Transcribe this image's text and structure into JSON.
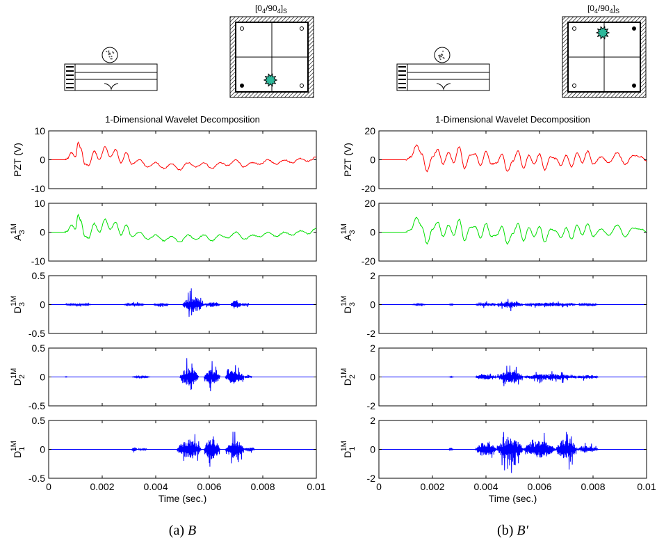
{
  "colors": {
    "pzt": "#ff0000",
    "approx": "#00e000",
    "detail": "#0000ff",
    "impact": "#2db89a",
    "axis": "#000000"
  },
  "icons": [
    "specimen-side-view-icon",
    "plate-top-view-icon",
    "impact-marker-icon"
  ],
  "chart_data": [
    {
      "type": "line",
      "id": "a",
      "caption_label": "(a)",
      "caption_var": "B",
      "title": "1-Dimensional Wavelet Decomposition",
      "plate_label": "[0",
      "plate_label_sub1": "4",
      "plate_label_mid": "/90",
      "plate_label_sub2": "4",
      "plate_label_end": "]",
      "plate_label_sub3": "S",
      "impact_location": "bottom-center",
      "xlabel": "Time (sec.)",
      "xlim": [
        0,
        0.01
      ],
      "xticks": [
        "0",
        "0.002",
        "0.004",
        "0.006",
        "0.008",
        "0.01"
      ],
      "panels": [
        {
          "name": "PZT (V)",
          "ylabel": "PZT (V)",
          "color_key": "pzt",
          "ylim": [
            -10,
            10
          ],
          "yticks": [
            "10",
            "0",
            "-10"
          ],
          "x": [
            0,
            0.0006,
            0.0007,
            0.00085,
            0.001,
            0.0011,
            0.0012,
            0.00135,
            0.0015,
            0.0017,
            0.0019,
            0.0021,
            0.0023,
            0.0025,
            0.0027,
            0.0029,
            0.0031,
            0.0034,
            0.0037,
            0.004,
            0.0043,
            0.0046,
            0.0049,
            0.0052,
            0.0055,
            0.0058,
            0.0061,
            0.0064,
            0.0067,
            0.007,
            0.0073,
            0.0076,
            0.0079,
            0.0082,
            0.0085,
            0.0088,
            0.0091,
            0.0094,
            0.0097,
            0.01
          ],
          "values": [
            0,
            0,
            0.4,
            2.5,
            1,
            6,
            4,
            -1.5,
            -2,
            3,
            0,
            4.5,
            1,
            3.5,
            -1,
            2.5,
            -1.5,
            0,
            -2.5,
            -1,
            -3,
            -1.5,
            -3.5,
            -1,
            -2.5,
            -1,
            -3,
            -1,
            -2,
            0,
            -2.5,
            -1,
            -1.5,
            0,
            -1.5,
            0,
            -1,
            0.5,
            -0.5,
            1
          ]
        },
        {
          "name": "A3 1M",
          "ylabel": "A",
          "ylabel_sub": "3",
          "ylabel_sup": "1M",
          "color_key": "approx",
          "ylim": [
            -10,
            10
          ],
          "yticks": [
            "10",
            "0",
            "-10"
          ],
          "x": [
            0,
            0.0006,
            0.0007,
            0.00085,
            0.001,
            0.0011,
            0.0012,
            0.00135,
            0.0015,
            0.0017,
            0.0019,
            0.0021,
            0.0023,
            0.0025,
            0.0027,
            0.0029,
            0.0031,
            0.0034,
            0.0037,
            0.004,
            0.0043,
            0.0046,
            0.0049,
            0.0052,
            0.0055,
            0.0058,
            0.0061,
            0.0064,
            0.0067,
            0.007,
            0.0073,
            0.0076,
            0.0079,
            0.0082,
            0.0085,
            0.0088,
            0.0091,
            0.0094,
            0.0097,
            0.01
          ],
          "values": [
            0,
            0,
            0.4,
            2.5,
            1,
            6,
            4,
            -1.5,
            -2,
            3,
            0,
            4.5,
            1,
            3.5,
            -1,
            2.5,
            -1.5,
            0,
            -2.5,
            -1,
            -3,
            -1.5,
            -3.5,
            -1,
            -2.5,
            -1,
            -3,
            -1,
            -2,
            0,
            -2.5,
            -1,
            -1.5,
            0,
            -1.5,
            0,
            -1,
            0.5,
            -0.5,
            1.5
          ]
        },
        {
          "name": "D3 1M",
          "ylabel": "D",
          "ylabel_sub": "3",
          "ylabel_sup": "1M",
          "color_key": "detail",
          "ylim": [
            -0.5,
            0.5
          ],
          "yticks": [
            "0.5",
            "0",
            "-0.5"
          ],
          "bursts": [
            {
              "x0": 0.0006,
              "x1": 0.0016,
              "amp": 0.04
            },
            {
              "x0": 0.0028,
              "x1": 0.0036,
              "amp": 0.05
            },
            {
              "x0": 0.0039,
              "x1": 0.0045,
              "amp": 0.06
            },
            {
              "x0": 0.005,
              "x1": 0.0058,
              "amp": 0.3
            },
            {
              "x0": 0.0058,
              "x1": 0.0064,
              "amp": 0.1
            },
            {
              "x0": 0.0068,
              "x1": 0.0072,
              "amp": 0.18
            },
            {
              "x0": 0.0072,
              "x1": 0.0075,
              "amp": 0.06
            }
          ]
        },
        {
          "name": "D2 1M",
          "ylabel": "D",
          "ylabel_sub": "2",
          "ylabel_sup": "1M",
          "color_key": "detail",
          "ylim": [
            -0.5,
            0.5
          ],
          "yticks": [
            "0.5",
            "0",
            "-0.5"
          ],
          "bursts": [
            {
              "x0": 0.0006,
              "x1": 0.0007,
              "amp": 0.02
            },
            {
              "x0": 0.0031,
              "x1": 0.0038,
              "amp": 0.03
            },
            {
              "x0": 0.0049,
              "x1": 0.0056,
              "amp": 0.35
            },
            {
              "x0": 0.0058,
              "x1": 0.0064,
              "amp": 0.3
            },
            {
              "x0": 0.0066,
              "x1": 0.0073,
              "amp": 0.28
            },
            {
              "x0": 0.0073,
              "x1": 0.0076,
              "amp": 0.05
            }
          ]
        },
        {
          "name": "D1 1M",
          "ylabel": "D",
          "ylabel_sub": "1",
          "ylabel_sup": "1M",
          "color_key": "detail",
          "ylim": [
            -0.5,
            0.5
          ],
          "yticks": [
            "0.5",
            "0",
            "-0.5"
          ],
          "bursts": [
            {
              "x0": 0.0031,
              "x1": 0.0033,
              "amp": 0.08
            },
            {
              "x0": 0.0033,
              "x1": 0.0037,
              "amp": 0.02
            },
            {
              "x0": 0.0048,
              "x1": 0.0057,
              "amp": 0.38
            },
            {
              "x0": 0.0058,
              "x1": 0.0064,
              "amp": 0.4
            },
            {
              "x0": 0.0066,
              "x1": 0.0073,
              "amp": 0.35
            },
            {
              "x0": 0.0073,
              "x1": 0.0077,
              "amp": 0.08
            }
          ]
        }
      ]
    },
    {
      "type": "line",
      "id": "b",
      "caption_label": "(b)",
      "caption_var": "B′",
      "title": "1-Dimensional Wavelet Decomposition",
      "plate_label": "[0",
      "plate_label_sub1": "4",
      "plate_label_mid": "/90",
      "plate_label_sub2": "4",
      "plate_label_end": "]",
      "plate_label_sub3": "S",
      "impact_location": "top-center",
      "xlabel": "Time (sec.)",
      "xlim": [
        0,
        0.01
      ],
      "xticks": [
        "0",
        "0.002",
        "0.004",
        "0.006",
        "0.008",
        "0.01"
      ],
      "panels": [
        {
          "name": "PZT (V)",
          "ylabel": "PZT (V)",
          "color_key": "pzt",
          "ylim": [
            -20,
            20
          ],
          "yticks": [
            "20",
            "0",
            "-20"
          ],
          "x": [
            0,
            0.001,
            0.0012,
            0.0014,
            0.0016,
            0.0018,
            0.002,
            0.0022,
            0.0024,
            0.0026,
            0.0028,
            0.003,
            0.0032,
            0.0034,
            0.0036,
            0.0038,
            0.004,
            0.0042,
            0.0044,
            0.0046,
            0.0048,
            0.005,
            0.0052,
            0.0054,
            0.0056,
            0.0058,
            0.006,
            0.0062,
            0.0064,
            0.0066,
            0.0068,
            0.007,
            0.0072,
            0.0074,
            0.0076,
            0.0078,
            0.008,
            0.0083,
            0.0086,
            0.0089,
            0.0092,
            0.0095,
            0.0098,
            0.01
          ],
          "values": [
            0,
            0,
            2,
            10,
            4,
            -8,
            2,
            7,
            -3,
            5,
            -2,
            9,
            -6,
            3,
            4,
            -4,
            6,
            -3,
            -2,
            4,
            -8,
            -1,
            6,
            -6,
            3,
            -3,
            4,
            -7,
            2,
            1,
            -4,
            3,
            -5,
            5,
            -2,
            6,
            -3,
            2,
            -2,
            5,
            -3,
            3,
            2,
            -1
          ]
        },
        {
          "name": "A3 1M",
          "ylabel": "A",
          "ylabel_sub": "3",
          "ylabel_sup": "1M",
          "color_key": "approx",
          "ylim": [
            -20,
            20
          ],
          "yticks": [
            "20",
            "0",
            "-20"
          ],
          "x": [
            0,
            0.001,
            0.0012,
            0.0014,
            0.0016,
            0.0018,
            0.002,
            0.0022,
            0.0024,
            0.0026,
            0.0028,
            0.003,
            0.0032,
            0.0034,
            0.0036,
            0.0038,
            0.004,
            0.0042,
            0.0044,
            0.0046,
            0.0048,
            0.005,
            0.0052,
            0.0054,
            0.0056,
            0.0058,
            0.006,
            0.0062,
            0.0064,
            0.0066,
            0.0068,
            0.007,
            0.0072,
            0.0074,
            0.0076,
            0.0078,
            0.008,
            0.0083,
            0.0086,
            0.0089,
            0.0092,
            0.0095,
            0.0098,
            0.01
          ],
          "values": [
            0,
            0,
            2,
            10,
            4,
            -8,
            2,
            7,
            -3,
            5,
            -2,
            9,
            -6,
            3,
            4,
            -4,
            6,
            -3,
            -2,
            4,
            -8,
            -1,
            6,
            -6,
            3,
            -3,
            4,
            -7,
            2,
            1,
            -4,
            3,
            -5,
            5,
            -2,
            6,
            -3,
            2,
            -2,
            5,
            -3,
            3,
            2,
            0
          ]
        },
        {
          "name": "D3 1M",
          "ylabel": "D",
          "ylabel_sub": "3",
          "ylabel_sup": "1M",
          "color_key": "detail",
          "ylim": [
            -2,
            2
          ],
          "yticks": [
            "2",
            "0",
            "-2"
          ],
          "bursts": [
            {
              "x0": 0.0012,
              "x1": 0.0018,
              "amp": 0.1
            },
            {
              "x0": 0.0026,
              "x1": 0.0028,
              "amp": 0.08
            },
            {
              "x0": 0.0036,
              "x1": 0.0044,
              "amp": 0.25
            },
            {
              "x0": 0.0044,
              "x1": 0.0054,
              "amp": 0.5
            },
            {
              "x0": 0.0054,
              "x1": 0.0074,
              "amp": 0.3
            },
            {
              "x0": 0.0074,
              "x1": 0.0082,
              "amp": 0.15
            }
          ]
        },
        {
          "name": "D2 1M",
          "ylabel": "D",
          "ylabel_sub": "2",
          "ylabel_sup": "1M",
          "color_key": "detail",
          "ylim": [
            -2,
            2
          ],
          "yticks": [
            "2",
            "0",
            "-2"
          ],
          "bursts": [
            {
              "x0": 0.0026,
              "x1": 0.0028,
              "amp": 0.06
            },
            {
              "x0": 0.0036,
              "x1": 0.0044,
              "amp": 0.4
            },
            {
              "x0": 0.0044,
              "x1": 0.0054,
              "amp": 0.9
            },
            {
              "x0": 0.0054,
              "x1": 0.0074,
              "amp": 0.5
            },
            {
              "x0": 0.0074,
              "x1": 0.0082,
              "amp": 0.3
            }
          ]
        },
        {
          "name": "D1 1M",
          "ylabel": "D",
          "ylabel_sub": "1",
          "ylabel_sup": "1M",
          "color_key": "detail",
          "ylim": [
            -2,
            2
          ],
          "yticks": [
            "2",
            "0",
            "-2"
          ],
          "bursts": [
            {
              "x0": 0.0026,
              "x1": 0.0028,
              "amp": 0.12
            },
            {
              "x0": 0.0036,
              "x1": 0.0044,
              "amp": 1.1
            },
            {
              "x0": 0.0044,
              "x1": 0.0054,
              "amp": 1.7
            },
            {
              "x0": 0.0054,
              "x1": 0.0066,
              "amp": 1.3
            },
            {
              "x0": 0.0066,
              "x1": 0.0074,
              "amp": 1.6
            },
            {
              "x0": 0.0074,
              "x1": 0.0082,
              "amp": 0.5
            }
          ]
        }
      ]
    }
  ]
}
